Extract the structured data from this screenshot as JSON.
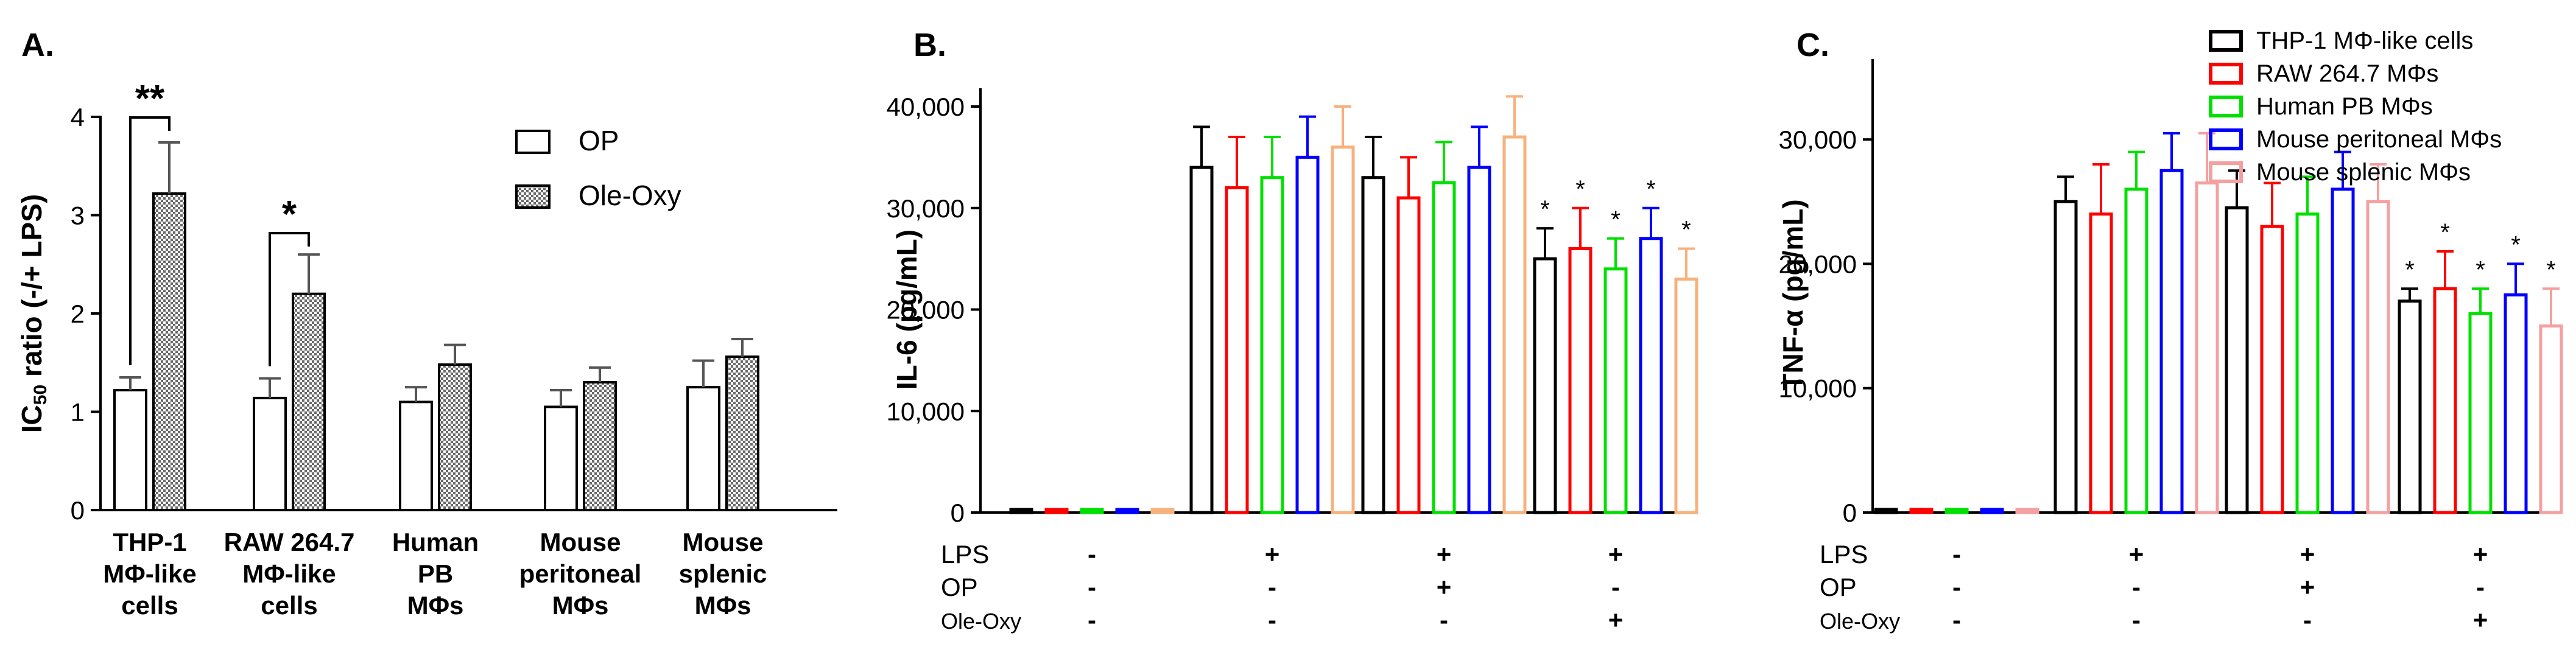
{
  "panel_labels": {
    "a": "A.",
    "b": "B.",
    "c": "C."
  },
  "chart_data": [
    {
      "type": "bar",
      "title": "",
      "ylabel": "IC50 ratio (-/+ LPS)",
      "ylabel_main": "IC",
      "ylabel_sub": "50",
      "ylabel_rest": " ratio (-/+ LPS)",
      "ylim": [
        0,
        4
      ],
      "yticks": [
        "0",
        "1",
        "2",
        "3",
        "4"
      ],
      "categories": [
        [
          "THP-1",
          "MΦ-like",
          "cells"
        ],
        [
          "RAW 264.7",
          "MΦ-like",
          "cells"
        ],
        [
          "Human",
          "PB",
          "MΦs"
        ],
        [
          "Mouse",
          "peritoneal",
          "MΦs"
        ],
        [
          "Mouse",
          "splenic",
          "MΦs"
        ]
      ],
      "series": [
        {
          "name": "OP",
          "values": [
            1.22,
            1.14,
            1.1,
            1.05,
            1.25
          ],
          "errors": [
            0.13,
            0.2,
            0.15,
            0.17,
            0.27
          ]
        },
        {
          "name": "Ole-Oxy",
          "values": [
            3.22,
            2.2,
            1.48,
            1.3,
            1.56
          ],
          "errors": [
            0.52,
            0.4,
            0.2,
            0.15,
            0.18
          ]
        }
      ],
      "significance": [
        {
          "category": 0,
          "label": "**"
        },
        {
          "category": 1,
          "label": "*"
        }
      ],
      "legend": "top-right"
    },
    {
      "type": "bar",
      "ylabel": "IL-6 (pg/mL)",
      "ylim": [
        0,
        40000
      ],
      "yticks": [
        "0",
        "10,000",
        "20,000",
        "30,000",
        "40,000"
      ],
      "treatment_rows": [
        {
          "label": "LPS",
          "values": [
            "-",
            "+",
            "+",
            "+"
          ]
        },
        {
          "label": "OP",
          "values": [
            "-",
            "-",
            "+",
            "-"
          ]
        },
        {
          "label": "Ole-Oxy",
          "values": [
            "-",
            "-",
            "-",
            "+"
          ]
        }
      ],
      "series": [
        {
          "name": "THP-1 MΦ-like cells",
          "color": "#000000",
          "values": [
            300,
            34000,
            33000,
            25000
          ],
          "errors": [
            0,
            4000,
            4000,
            3000
          ]
        },
        {
          "name": "RAW 264.7 MΦs",
          "color": "#ff0000",
          "values": [
            300,
            32000,
            31000,
            26000
          ],
          "errors": [
            0,
            5000,
            4000,
            4000
          ]
        },
        {
          "name": "Human PB MΦs",
          "color": "#00e000",
          "values": [
            300,
            33000,
            32500,
            24000
          ],
          "errors": [
            0,
            4000,
            4000,
            3000
          ]
        },
        {
          "name": "Mouse peritoneal MΦs",
          "color": "#0000ff",
          "values": [
            300,
            35000,
            34000,
            27000
          ],
          "errors": [
            0,
            4000,
            4000,
            3000
          ]
        },
        {
          "name": "Mouse splenic MΦs",
          "color": "#f7b17c",
          "values": [
            300,
            36000,
            37000,
            23000
          ],
          "errors": [
            0,
            4000,
            4000,
            3000
          ]
        }
      ],
      "significance": [
        {
          "group": 3,
          "label": "*"
        }
      ]
    },
    {
      "type": "bar",
      "ylabel": "TNF-α (pg/mL)",
      "ylim": [
        0,
        35000
      ],
      "yticks": [
        "0",
        "10,000",
        "20,000",
        "30,000"
      ],
      "treatment_rows": [
        {
          "label": "LPS",
          "values": [
            "-",
            "+",
            "+",
            "+"
          ]
        },
        {
          "label": "OP",
          "values": [
            "-",
            "-",
            "+",
            "-"
          ]
        },
        {
          "label": "Ole-Oxy",
          "values": [
            "-",
            "-",
            "-",
            "+"
          ]
        }
      ],
      "series": [
        {
          "name": "THP-1 MΦ-like cells",
          "color": "#000000",
          "values": [
            250,
            25000,
            24500,
            17000
          ],
          "errors": [
            0,
            2000,
            3000,
            1000
          ]
        },
        {
          "name": "RAW 264.7 MΦs",
          "color": "#ff0000",
          "values": [
            250,
            24000,
            23000,
            18000
          ],
          "errors": [
            0,
            4000,
            3500,
            3000
          ]
        },
        {
          "name": "Human PB MΦs",
          "color": "#00e000",
          "values": [
            250,
            26000,
            24000,
            16000
          ],
          "errors": [
            0,
            3000,
            3000,
            2000
          ]
        },
        {
          "name": "Mouse peritoneal MΦs",
          "color": "#0000ff",
          "values": [
            250,
            27500,
            26000,
            17500
          ],
          "errors": [
            0,
            3000,
            3000,
            2500
          ]
        },
        {
          "name": "Mouse splenic MΦs",
          "color": "#f4a0a0",
          "values": [
            250,
            26500,
            25000,
            15000
          ],
          "errors": [
            0,
            4000,
            3000,
            3000
          ]
        }
      ],
      "significance": [
        {
          "group": 3,
          "label": "*"
        }
      ],
      "legend": "top-right"
    }
  ]
}
